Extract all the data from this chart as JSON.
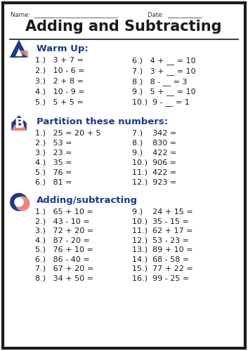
{
  "title": "Adding and Subtracting",
  "name_label": "Name:  ___________________________.",
  "date_label": "Date:  ___________.",
  "section_a_header": "Warm Up:",
  "section_b_header": "Partition these numbers:",
  "section_c_header": "Adding/subtracting",
  "warm_up_left": [
    "1.)   3 + 7 =",
    "2.)   10 - 6 =",
    "3.)   2 + 8 =",
    "4.)   10 - 9 =",
    "5.)   5 + 5 ="
  ],
  "warm_up_right": [
    "6.)   4 + __ = 10",
    "7.)   3 + __ = 10",
    "8.)   8 - __ = 3",
    "9.)   5 + __ = 10",
    "10.)  9 - __ = 1"
  ],
  "partition_left": [
    "1.)   25 = 20 + 5",
    "2.)   53 =",
    "3.)   23 =",
    "4.)   35 =",
    "5.)   76 =",
    "6.)   81 ="
  ],
  "partition_right": [
    "7.)    342 =",
    "8.)    830 =",
    "9.)    422 =",
    "10.)  906 =",
    "11.)  422 =",
    "12.)  923 ="
  ],
  "addsub_left": [
    "1.)   65 + 10 =",
    "2.)   43 - 10 =",
    "3.)   72 + 20 =",
    "4.)   87 - 20 =",
    "5.)   76 + 10 =",
    "6.)   86 - 40 =",
    "7.)   67 + 20 =",
    "8.)   34 + 50 ="
  ],
  "addsub_right": [
    "9.)    24 + 15 =",
    "10.)  35 - 15 =",
    "11.)  62 + 17 =",
    "12.)  53 - 23 =",
    "13.)  89 + 10 =",
    "14.)  68 - 58 =",
    "15.)  77 + 22 =",
    "16.)  99 - 25 ="
  ],
  "bg_color": "#ffffff",
  "border_color": "#1a1a1a",
  "title_color": "#1a1a1a",
  "header_color": "#1a3a8a",
  "text_color": "#1a1a1a",
  "name_date_color": "#333333",
  "icon_blue": "#1a3a8a",
  "icon_salmon": "#e8887a"
}
